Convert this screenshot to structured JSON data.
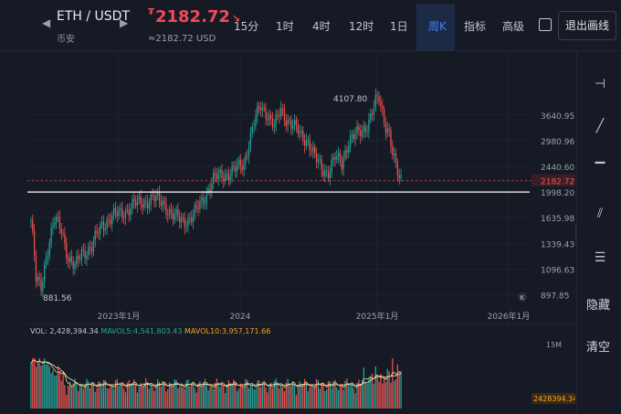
{
  "header": {
    "back_icon": "chevron-left-icon",
    "forward_icon": "chevron-right-icon",
    "pair": "ETH / USDT",
    "exchange": "币安",
    "price_currency": "₮",
    "price": "2182.72",
    "price_usd": "≈2182.72 USD",
    "timeframes": [
      "15分",
      "1时",
      "4时",
      "12时",
      "1日"
    ],
    "active_timeframe": "周K",
    "indicators": "指标",
    "advanced": "高级",
    "settings_icon": "settings-icon",
    "exit_button": "退出画线"
  },
  "chart_data": {
    "type": "candlestick",
    "interval": "weekly",
    "price_axis_labels": [
      "3640.95",
      "2980.96",
      "2440.60",
      "2182.72",
      "1998.20",
      "1635.98",
      "1339.43",
      "1096.63",
      "897.85"
    ],
    "time_axis_labels": [
      "2023年1月",
      "2024",
      "2025年1月",
      "2026年1月"
    ],
    "annotations": {
      "high": "4107.80",
      "low": "881.56"
    },
    "current_price": "2182.72",
    "horizontal_line": 1998.2,
    "price_log_scale": true,
    "volume": {
      "vol_label": "VOL: 2,428,394.34",
      "mavol5_label": "MAVOL5:4,541,803.43",
      "mavol10_label": "MAVOL10:3,957,171.66",
      "axis_label": "15M",
      "current_label": "2428394.34"
    },
    "colors": {
      "up": "#26a69a",
      "down": "#ef5350",
      "mavol5": "#f5d06a",
      "mavol10": "#e8e8e8",
      "accent": "#3c82f6"
    }
  },
  "toolbar": {
    "tools": [
      "horizontal-ray-icon",
      "trend-line-icon",
      "horizontal-line-icon",
      "parallel-channel-icon",
      "fibonacci-icon"
    ],
    "hide_label": "隐藏",
    "clear_label": "清空"
  }
}
